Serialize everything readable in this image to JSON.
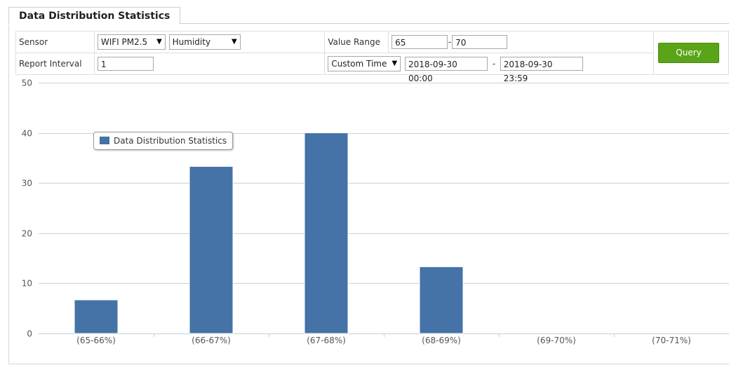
{
  "header": {
    "tab_title": "Data Distribution Statistics"
  },
  "form": {
    "sensor_label": "Sensor",
    "sensor_value": "WIFI PM2.5",
    "metric_value": "Humidity",
    "value_range_label": "Value Range",
    "range_min": "65",
    "range_max": "70",
    "report_interval_label": "Report Interval",
    "report_interval_value": "1",
    "time_mode_value": "Custom Time",
    "time_start": "2018-09-30 00:00",
    "time_end": "2018-09-30 23:59",
    "range_separator": "-",
    "query_label": "Query"
  },
  "colors": {
    "bar": "#4572a7",
    "button": "#5aa417"
  },
  "chart_data": {
    "type": "bar",
    "categories": [
      "(65-66%)",
      "(66-67%)",
      "(67-68%)",
      "(68-69%)",
      "(69-70%)",
      "(70-71%)"
    ],
    "series": [
      {
        "name": "Data Distribution Statistics",
        "values": [
          6.7,
          33.3,
          40,
          13.3,
          0,
          0
        ]
      }
    ],
    "ylim": [
      0,
      50
    ],
    "yticks": [
      0,
      10,
      20,
      30,
      40,
      50
    ],
    "grid": true,
    "legend": "top-left"
  }
}
